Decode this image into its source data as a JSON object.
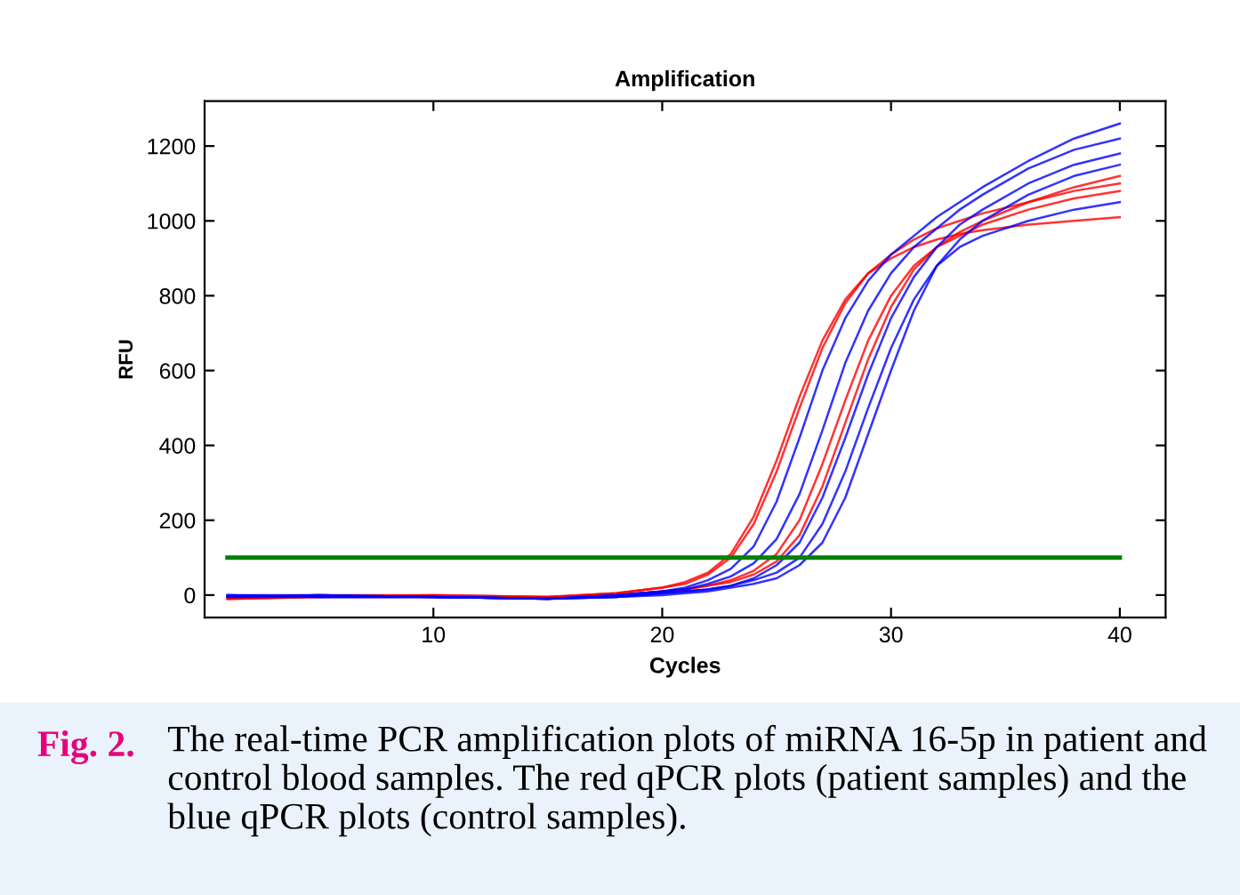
{
  "chart_data": {
    "type": "line",
    "title": "Amplification",
    "xlabel": "Cycles",
    "ylabel": "RFU",
    "xlim": [
      0,
      42
    ],
    "xticks": [
      10,
      20,
      30,
      40
    ],
    "ylim": [
      -60,
      1320
    ],
    "yticks": [
      0,
      200,
      400,
      600,
      800,
      1000,
      1200
    ],
    "grid": false,
    "legend": false,
    "marker": "none",
    "line_style": "solid",
    "x": [
      1,
      5,
      10,
      15,
      18,
      20,
      21,
      22,
      23,
      24,
      25,
      26,
      27,
      28,
      29,
      30,
      31,
      32,
      33,
      34,
      36,
      38,
      40
    ],
    "series": [
      {
        "color": "#ff0000",
        "values": [
          -10,
          -5,
          0,
          -5,
          5,
          20,
          35,
          60,
          110,
          210,
          360,
          530,
          680,
          790,
          860,
          900,
          930,
          950,
          965,
          975,
          990,
          1000,
          1010
        ]
      },
      {
        "color": "#ff0000",
        "values": [
          -5,
          0,
          -5,
          -5,
          5,
          20,
          30,
          55,
          100,
          190,
          330,
          500,
          660,
          780,
          860,
          910,
          950,
          980,
          1000,
          1020,
          1050,
          1080,
          1100
        ]
      },
      {
        "color": "#ff0000",
        "values": [
          -10,
          -5,
          -5,
          -10,
          0,
          10,
          15,
          25,
          40,
          65,
          110,
          200,
          350,
          520,
          680,
          800,
          880,
          930,
          960,
          990,
          1030,
          1060,
          1080
        ]
      },
      {
        "color": "#ff0000",
        "values": [
          -5,
          0,
          0,
          -5,
          0,
          10,
          15,
          25,
          35,
          55,
          90,
          160,
          290,
          460,
          630,
          770,
          870,
          930,
          970,
          1000,
          1050,
          1090,
          1120
        ]
      },
      {
        "color": "#0000ff",
        "values": [
          0,
          -5,
          -5,
          -10,
          0,
          10,
          20,
          40,
          70,
          130,
          250,
          420,
          600,
          740,
          840,
          910,
          960,
          1010,
          1050,
          1090,
          1160,
          1220,
          1260
        ]
      },
      {
        "color": "#0000ff",
        "values": [
          -5,
          0,
          -5,
          -10,
          -5,
          5,
          10,
          15,
          25,
          45,
          80,
          140,
          260,
          420,
          590,
          740,
          850,
          930,
          990,
          1030,
          1100,
          1150,
          1180
        ]
      },
      {
        "color": "#0000ff",
        "values": [
          0,
          0,
          -5,
          -10,
          -5,
          0,
          5,
          10,
          20,
          30,
          45,
          80,
          140,
          260,
          430,
          600,
          760,
          880,
          950,
          1000,
          1070,
          1120,
          1150
        ]
      },
      {
        "color": "#0000ff",
        "values": [
          -5,
          -5,
          -5,
          -10,
          -5,
          5,
          10,
          15,
          25,
          40,
          60,
          100,
          190,
          330,
          500,
          660,
          790,
          880,
          930,
          960,
          1000,
          1030,
          1050
        ]
      },
      {
        "color": "#0000ff",
        "values": [
          0,
          -5,
          -5,
          -10,
          0,
          10,
          15,
          30,
          50,
          85,
          150,
          270,
          440,
          620,
          760,
          860,
          930,
          980,
          1030,
          1070,
          1140,
          1190,
          1220
        ]
      }
    ],
    "ref_lines": [
      {
        "axis": "y",
        "value": 100,
        "color": "#008000",
        "line_style": "solid"
      }
    ],
    "annotations": [
      "Fig. 2.",
      "The real-time PCR amplification plots of miRNA 16-5p in patient and control blood samples. The red qPCR plots (patient samples) and the blue qPCR plots (control samples)."
    ]
  }
}
